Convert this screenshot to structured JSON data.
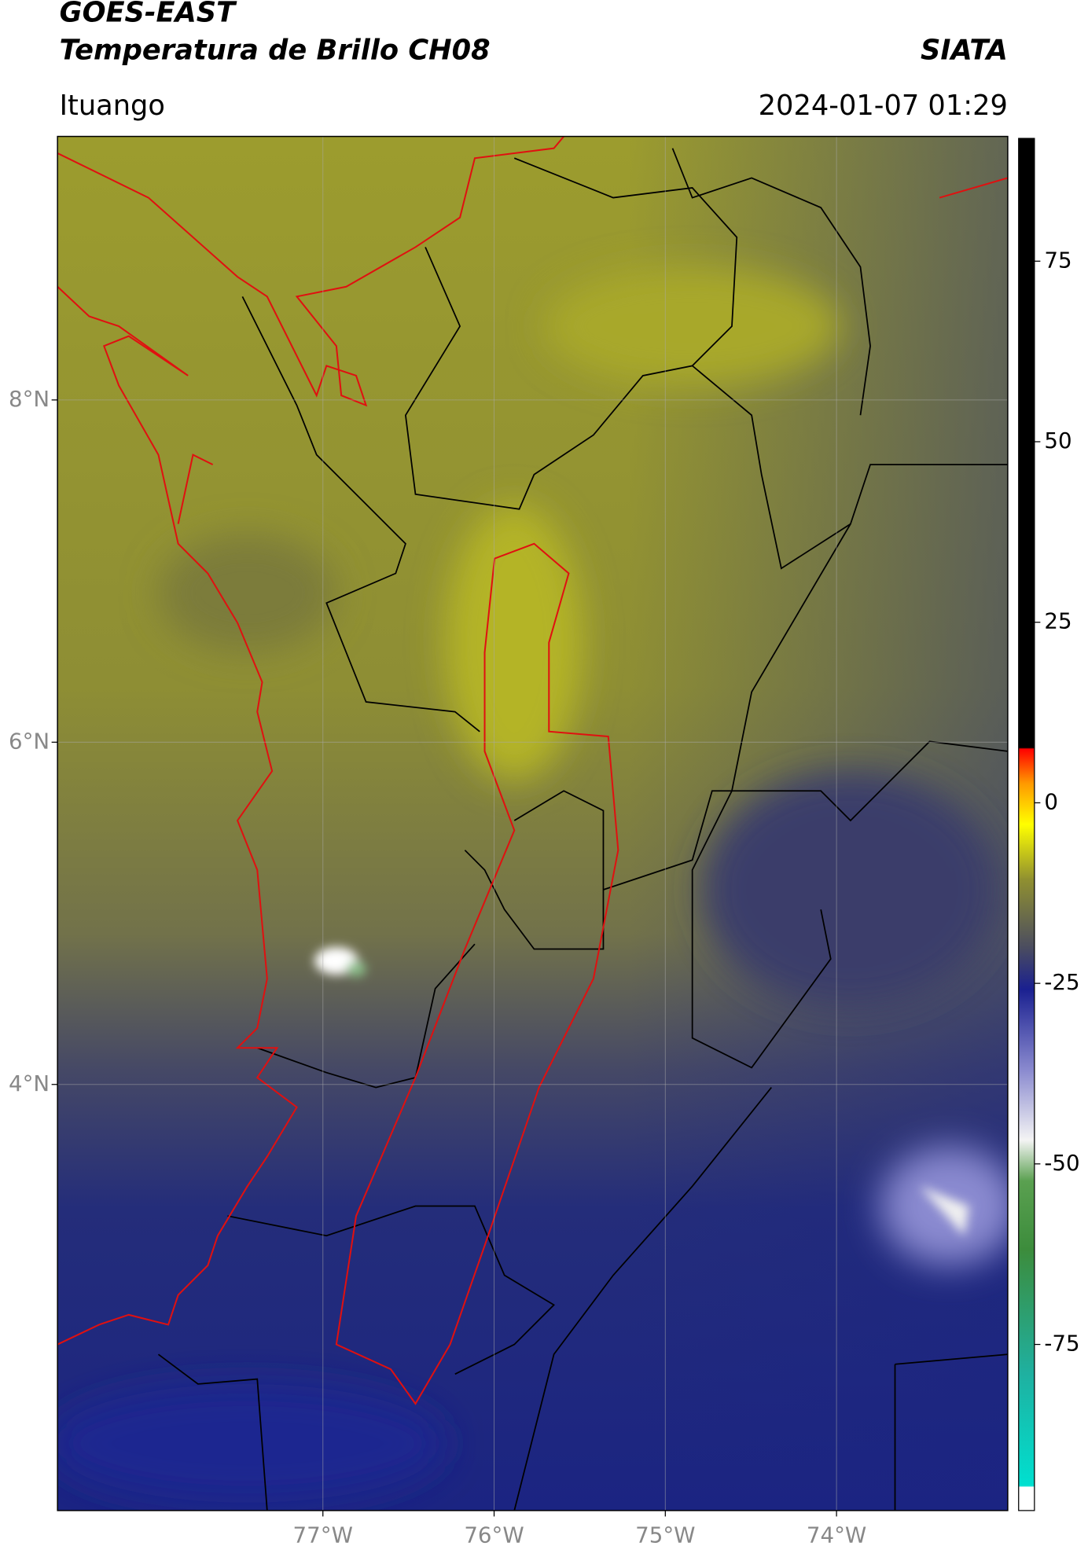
{
  "header": {
    "title": "GOES-EAST",
    "subtitle": "Temperatura de Brillo CH08",
    "agency": "SIATA",
    "region": "Ituango",
    "timestamp": "2024-01-07 01:29"
  },
  "map": {
    "xlim": [
      -78.55,
      -73.0
    ],
    "ylim": [
      1.51,
      9.54
    ],
    "xticks": [
      {
        "value": -77,
        "label": "77°W"
      },
      {
        "value": -76,
        "label": "76°W"
      },
      {
        "value": -75,
        "label": "75°W"
      },
      {
        "value": -74,
        "label": "74°W"
      }
    ],
    "yticks": [
      {
        "value": 8,
        "label": "8°N"
      },
      {
        "value": 6,
        "label": "6°N"
      },
      {
        "value": 4,
        "label": "4°N"
      }
    ],
    "grid": true
  },
  "colorbar": {
    "lim": [
      -98,
      92
    ],
    "ticks": [
      75,
      50,
      25,
      0,
      -25,
      -50,
      -75
    ]
  }
}
